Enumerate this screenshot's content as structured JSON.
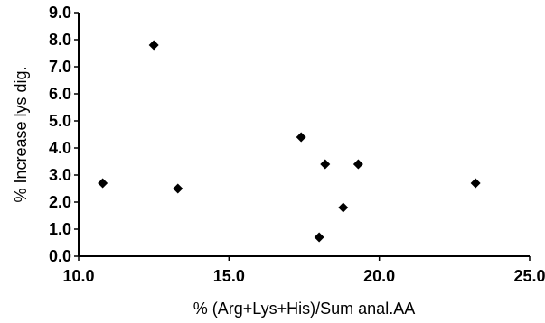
{
  "chart_data": {
    "type": "scatter",
    "title": "",
    "xlabel": "% (Arg+Lys+His)/Sum anal.AA",
    "ylabel": "% Increase lys dig.",
    "xlim": [
      10.0,
      25.0
    ],
    "ylim": [
      0.0,
      9.0
    ],
    "x_ticks": [
      "10.0",
      "15.0",
      "20.0",
      "25.0"
    ],
    "y_ticks": [
      "0.0",
      "1.0",
      "2.0",
      "3.0",
      "4.0",
      "5.0",
      "6.0",
      "7.0",
      "8.0",
      "9.0"
    ],
    "x_tick_values": [
      10,
      15,
      20,
      25
    ],
    "y_tick_values": [
      0,
      1,
      2,
      3,
      4,
      5,
      6,
      7,
      8,
      9
    ],
    "grid": false,
    "legend": "none",
    "marker": "diamond",
    "marker_color": "#000000",
    "points": [
      {
        "x": 10.8,
        "y": 2.7
      },
      {
        "x": 12.5,
        "y": 7.8
      },
      {
        "x": 13.3,
        "y": 2.5
      },
      {
        "x": 17.4,
        "y": 4.4
      },
      {
        "x": 18.0,
        "y": 0.7
      },
      {
        "x": 18.2,
        "y": 3.4
      },
      {
        "x": 18.8,
        "y": 1.8
      },
      {
        "x": 19.3,
        "y": 3.4
      },
      {
        "x": 23.2,
        "y": 2.7
      }
    ]
  }
}
